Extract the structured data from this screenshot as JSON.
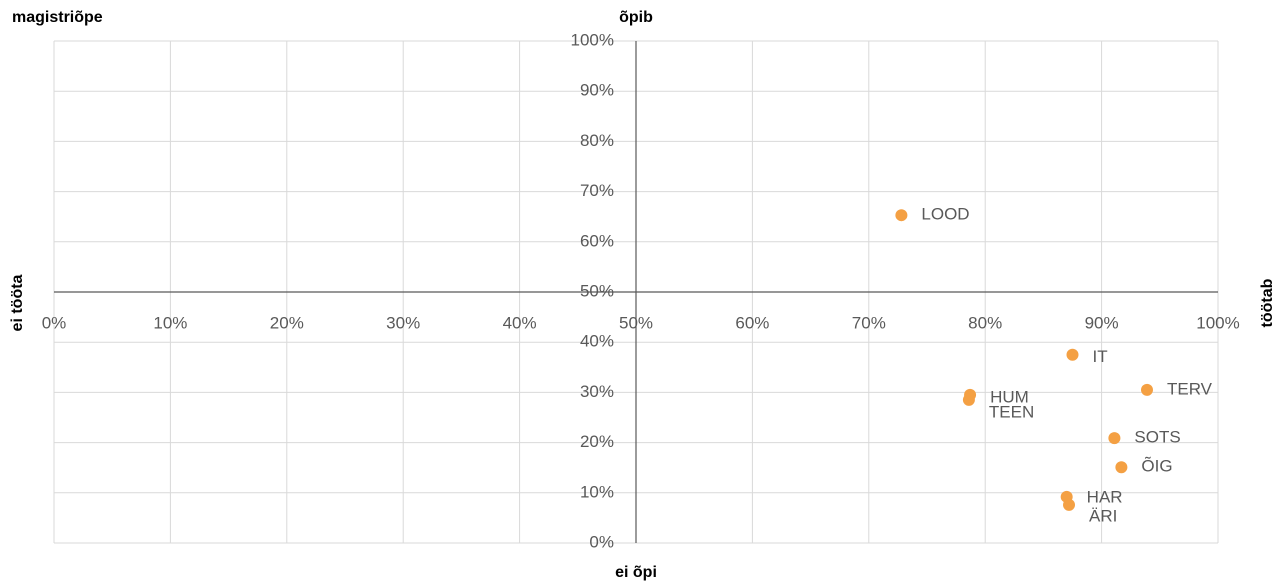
{
  "chart_data": {
    "type": "scatter",
    "title": "magistriõpe",
    "top_label": "õpib",
    "bottom_label": "ei õpi",
    "left_label": "ei tööta",
    "right_label": "töötab",
    "point_labels": [
      "LOOD",
      "IT",
      "TERV",
      "HUM",
      "TEEN",
      "SOTS",
      "ÕIG",
      "HAR",
      "ÄRI"
    ],
    "x": [
      72.8,
      87.5,
      93.9,
      78.7,
      78.6,
      91.1,
      91.7,
      87.0,
      87.2
    ],
    "values": [
      65.3,
      37.5,
      30.5,
      29.5,
      28.5,
      20.9,
      15.1,
      9.2,
      7.6
    ],
    "color": "#f4a043",
    "xlim": [
      0,
      100
    ],
    "ylim": [
      0,
      100
    ],
    "xticks": [
      {
        "value": 0,
        "label": "0%"
      },
      {
        "value": 10,
        "label": "10%"
      },
      {
        "value": 20,
        "label": "20%"
      },
      {
        "value": 30,
        "label": "30%"
      },
      {
        "value": 40,
        "label": "40%"
      },
      {
        "value": 50,
        "label": "50%"
      },
      {
        "value": 60,
        "label": "60%"
      },
      {
        "value": 70,
        "label": "70%"
      },
      {
        "value": 80,
        "label": "80%"
      },
      {
        "value": 90,
        "label": "90%"
      },
      {
        "value": 100,
        "label": "100%"
      }
    ],
    "yticks": [
      {
        "value": 0,
        "label": "0%"
      },
      {
        "value": 10,
        "label": "10%"
      },
      {
        "value": 20,
        "label": "20%"
      },
      {
        "value": 30,
        "label": "30%"
      },
      {
        "value": 40,
        "label": "40%"
      },
      {
        "value": 50,
        "label": "50%"
      },
      {
        "value": 60,
        "label": "60%"
      },
      {
        "value": 70,
        "label": "70%"
      },
      {
        "value": 80,
        "label": "80%"
      },
      {
        "value": 90,
        "label": "90%"
      },
      {
        "value": 100,
        "label": "100%"
      }
    ],
    "axis_cross": [
      50,
      50
    ],
    "grid": true
  }
}
